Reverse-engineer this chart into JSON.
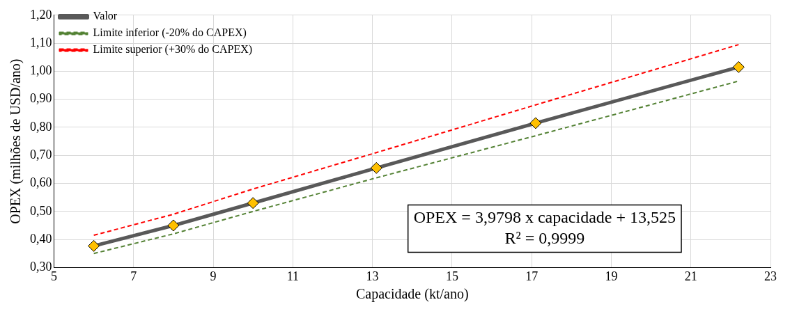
{
  "chart_data": {
    "type": "line",
    "xlabel": "Capacidade (kt/ano)",
    "ylabel": "OPEX (milhões de USD/ano)",
    "x": [
      6,
      8,
      10,
      13.1,
      17.1,
      22.2
    ],
    "series": [
      {
        "name": "Valor",
        "color": "#595959",
        "values": [
          0.377,
          0.45,
          0.53,
          0.655,
          0.815,
          1.015
        ],
        "marker": "diamond",
        "line_style": "solid"
      },
      {
        "name": "Limite inferior (-20% do CAPEX)",
        "color": "#548235",
        "values": [
          0.35,
          0.42,
          0.5,
          0.62,
          0.77,
          0.965
        ],
        "marker": "none",
        "line_style": "dashed"
      },
      {
        "name": "Limite superior (+30% do CAPEX)",
        "color": "#ff0000",
        "values": [
          0.415,
          0.49,
          0.58,
          0.71,
          0.88,
          1.095
        ],
        "marker": "none",
        "line_style": "dashed"
      }
    ],
    "xlim": [
      5,
      23
    ],
    "xticks": [
      5,
      7,
      9,
      11,
      13,
      15,
      17,
      19,
      21,
      23
    ],
    "ylim": [
      0.3,
      1.2
    ],
    "yticks": [
      {
        "value": 0.3,
        "label": "0,30"
      },
      {
        "value": 0.4,
        "label": "0,40"
      },
      {
        "value": 0.5,
        "label": "0,50"
      },
      {
        "value": 0.6,
        "label": "0,60"
      },
      {
        "value": 0.7,
        "label": "0,70"
      },
      {
        "value": 0.8,
        "label": "0,80"
      },
      {
        "value": 0.9,
        "label": "0,90"
      },
      {
        "value": 1.0,
        "label": "1,00"
      },
      {
        "value": 1.1,
        "label": "1,10"
      },
      {
        "value": 1.2,
        "label": "1,20"
      }
    ],
    "annotations": [
      "OPEX = 3,9798 x capacidade + 13,525",
      "R² = 0,9999"
    ],
    "grid": true,
    "legend": "top left"
  }
}
